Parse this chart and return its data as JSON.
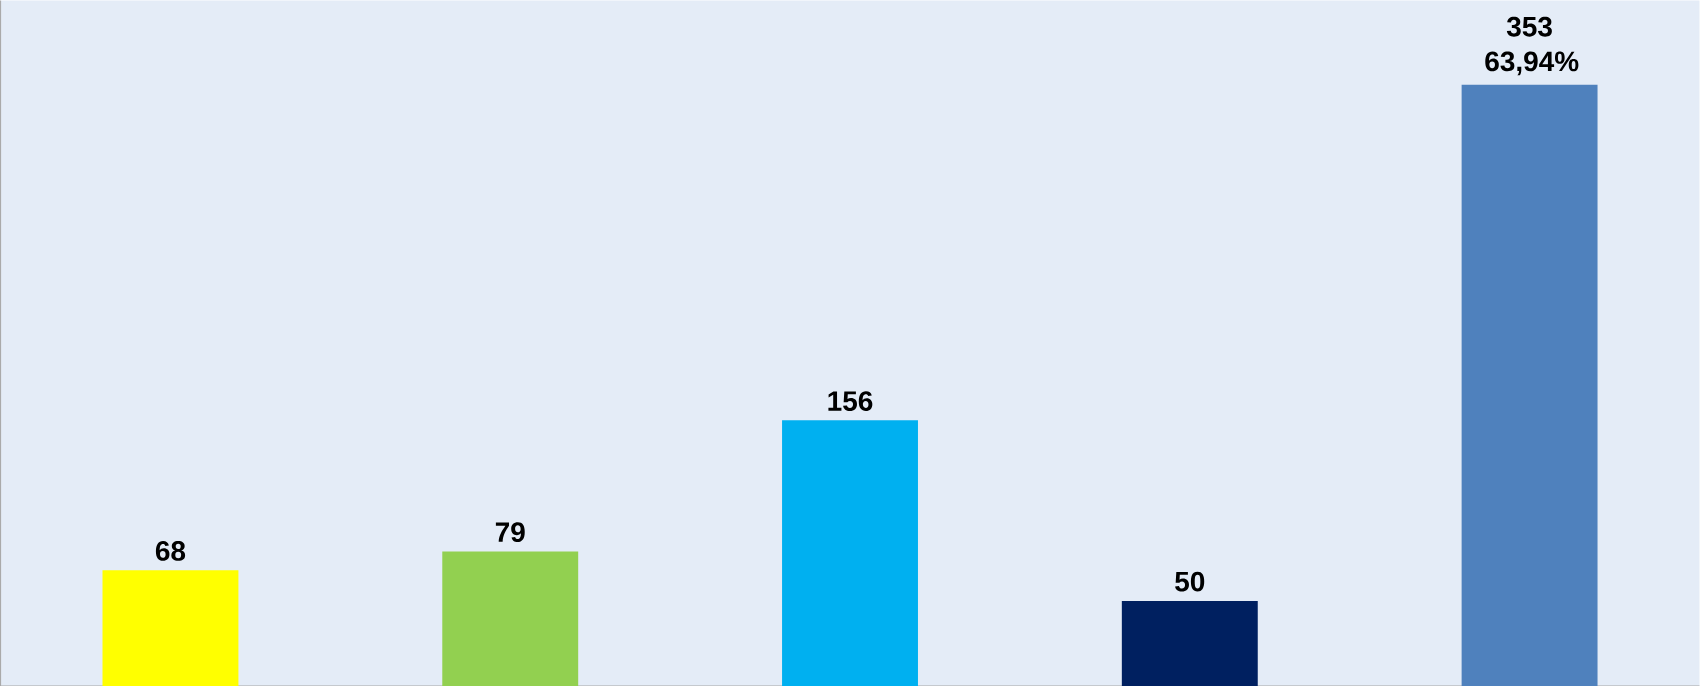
{
  "chart_data": {
    "type": "bar",
    "categories": [
      null,
      null,
      null,
      null,
      null
    ],
    "values": [
      68,
      79,
      156,
      50,
      353
    ],
    "colors": [
      "#ffff00",
      "#92d050",
      "#00b0f0",
      "#002060",
      "#4f81bd"
    ],
    "value_labels": [
      "68",
      "79",
      "156",
      "50",
      "353 63,94%"
    ]
  }
}
